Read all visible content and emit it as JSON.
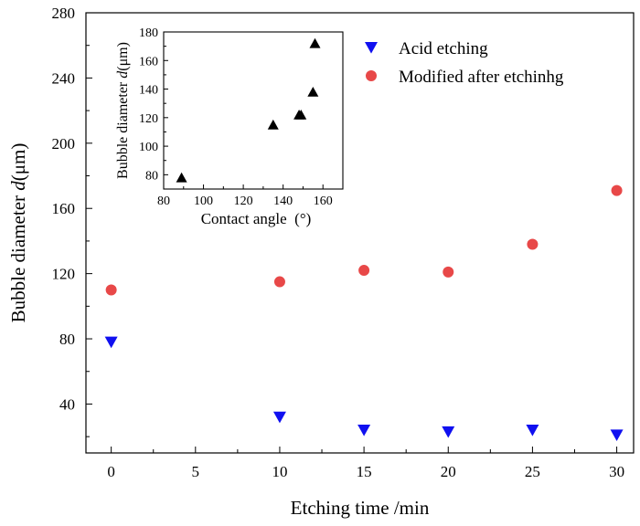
{
  "chart_data": [
    {
      "type": "scatter",
      "xlabel": "Etching time /min",
      "ylabel_main": "Bubble diameter ",
      "ylabel_var": "d",
      "ylabel_unit": "(μm)",
      "xlim": [
        -1.5,
        31
      ],
      "ylim": [
        10,
        280
      ],
      "xticks": [
        0,
        5,
        10,
        15,
        20,
        25,
        30
      ],
      "yticks": [
        40,
        80,
        120,
        160,
        200,
        240,
        280
      ],
      "legend_position": "top-right",
      "series": [
        {
          "name": "Acid etching",
          "marker": "triangle-down",
          "color": "#1010f0",
          "x": [
            0,
            10,
            15,
            20,
            25,
            30
          ],
          "y": [
            78,
            32,
            24,
            23,
            24,
            21
          ]
        },
        {
          "name": "Modified after etchinhg",
          "marker": "circle",
          "color": "#e84848",
          "x": [
            0,
            10,
            15,
            20,
            25,
            30
          ],
          "y": [
            110,
            115,
            122,
            121,
            138,
            171
          ]
        }
      ]
    },
    {
      "type": "scatter",
      "inset": true,
      "xlabel": "Contact angle  (°)",
      "ylabel_main": "Bubble diameter ",
      "ylabel_var": "d",
      "ylabel_unit": "(μm)",
      "xlim": [
        80,
        170
      ],
      "ylim": [
        70,
        180
      ],
      "xticks": [
        80,
        100,
        120,
        140,
        160
      ],
      "yticks": [
        80,
        100,
        120,
        140,
        160,
        180
      ],
      "series": [
        {
          "marker": "triangle-up",
          "color": "#000000",
          "x": [
            89,
            135,
            148,
            149,
            155,
            156
          ],
          "y": [
            78,
            115,
            122,
            122,
            138,
            172
          ]
        }
      ]
    }
  ]
}
